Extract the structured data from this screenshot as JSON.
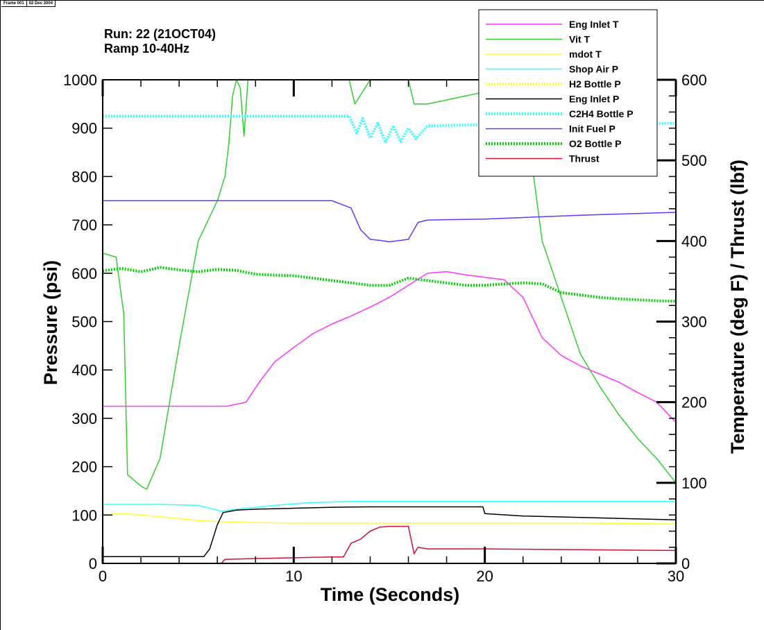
{
  "frame": {
    "frame_label": "Frame 001",
    "date_label": "02 Dec 2004"
  },
  "run_info": {
    "line1": "Run: 22 (21OCT04)",
    "line2": "Ramp 10-40Hz"
  },
  "chart_data": {
    "type": "line",
    "xlabel": "Time (Seconds)",
    "ylabel": "Pressure (psi)",
    "y2label": "Temperature (deg F) / Thrust (lbf)",
    "xlim": [
      0,
      30
    ],
    "ylim": [
      0,
      1000
    ],
    "y2lim": [
      0,
      600
    ],
    "x_ticks": [
      "0",
      "10",
      "20",
      "30"
    ],
    "y_ticks": [
      "0",
      "100",
      "200",
      "300",
      "400",
      "500",
      "600",
      "700",
      "800",
      "900",
      "1000"
    ],
    "y2_ticks": [
      "0",
      "100",
      "200",
      "300",
      "400",
      "500",
      "600"
    ],
    "grid": false,
    "legend_position": "top-right",
    "series": [
      {
        "name": "Eng Inlet T",
        "axis": "right",
        "color": "#ff33ff",
        "style": "line",
        "x": [
          0,
          2,
          4,
          6.5,
          7.5,
          8.2,
          9,
          10,
          11,
          12,
          13,
          14,
          15,
          16,
          17,
          18,
          19,
          20,
          21,
          22,
          23,
          24,
          25,
          26,
          27,
          28,
          29,
          30
        ],
        "y": [
          195,
          195,
          195,
          195,
          200,
          225,
          250,
          268,
          285,
          297,
          307,
          318,
          330,
          345,
          360,
          362,
          358,
          355,
          352,
          330,
          280,
          258,
          245,
          235,
          225,
          212,
          200,
          175
        ]
      },
      {
        "name": "Vit T",
        "axis": "right",
        "color": "#33cc33",
        "style": "line",
        "x": [
          0,
          0.7,
          1.1,
          1.3,
          2,
          2.3,
          3,
          4,
          5,
          6,
          6.4,
          6.6,
          6.8,
          7,
          7.2,
          7.4,
          7.6,
          8,
          12,
          12.9,
          13.2,
          14,
          15,
          16,
          16.3,
          17,
          20,
          21,
          22,
          22.5,
          23,
          24,
          25,
          26,
          27,
          28,
          29,
          30
        ],
        "y": [
          385,
          380,
          310,
          110,
          96,
          92,
          130,
          270,
          400,
          450,
          480,
          520,
          580,
          600,
          590,
          530,
          600,
          600,
          600,
          600,
          570,
          600,
          600,
          600,
          570,
          570,
          585,
          580,
          545,
          490,
          400,
          330,
          260,
          220,
          185,
          155,
          130,
          100
        ]
      },
      {
        "name": "mdot T",
        "axis": "right",
        "color": "#ffff33",
        "style": "line",
        "x": [
          0,
          1,
          3,
          5,
          7,
          10,
          15,
          20,
          25,
          30
        ],
        "y": [
          60,
          62,
          58,
          53,
          51,
          50,
          50,
          50,
          50,
          49
        ]
      },
      {
        "name": "Shop Air P",
        "axis": "left",
        "color": "#33ffff",
        "style": "line",
        "x": [
          0,
          3,
          5,
          6.2,
          7,
          9,
          11,
          13,
          15,
          20,
          25,
          30
        ],
        "y": [
          122,
          122,
          120,
          108,
          112,
          120,
          126,
          128,
          128,
          128,
          128,
          128
        ]
      },
      {
        "name": "H2 Bottle P",
        "axis": "left",
        "color": "#ffff33",
        "style": "dotted",
        "x": [],
        "y": []
      },
      {
        "name": "Eng Inlet P",
        "axis": "left",
        "color": "#000000",
        "style": "line",
        "x": [
          0,
          5.3,
          5.6,
          6,
          6.3,
          7,
          8,
          10,
          12,
          14,
          16,
          18,
          19.9,
          20,
          22,
          25,
          30
        ],
        "y": [
          14,
          14,
          30,
          80,
          105,
          110,
          112,
          114,
          116,
          117,
          117,
          117,
          117,
          103,
          98,
          95,
          90
        ]
      },
      {
        "name": "C2H4 Bottle P",
        "axis": "left",
        "color": "#33ffff",
        "style": "dotted",
        "x": [
          0,
          5,
          10,
          12.9,
          13.3,
          13.6,
          14,
          14.4,
          14.8,
          15.2,
          15.6,
          16,
          16.4,
          17,
          20,
          25,
          30
        ],
        "y": [
          925,
          925,
          925,
          925,
          890,
          920,
          880,
          910,
          870,
          905,
          872,
          900,
          878,
          905,
          907,
          908,
          910
        ]
      },
      {
        "name": "Init Fuel P",
        "axis": "left",
        "color": "#6633ff",
        "style": "line",
        "x": [
          0,
          5,
          10,
          12,
          13,
          13.5,
          14,
          14.5,
          15,
          16,
          16.5,
          17,
          20,
          25,
          30
        ],
        "y": [
          750,
          750,
          750,
          750,
          735,
          690,
          670,
          668,
          665,
          670,
          705,
          710,
          712,
          720,
          726
        ]
      },
      {
        "name": "O2 Bottle P",
        "axis": "left",
        "color": "#00cc00",
        "style": "dotted",
        "x": [
          0,
          1,
          2,
          3,
          4,
          5,
          6,
          7,
          8,
          9,
          10,
          11,
          12,
          13,
          14,
          15,
          16,
          17,
          18,
          19,
          20,
          21,
          22,
          23,
          24,
          25,
          26,
          27,
          28,
          29,
          30
        ],
        "y": [
          605,
          610,
          603,
          612,
          607,
          603,
          608,
          606,
          598,
          596,
          595,
          590,
          585,
          580,
          575,
          575,
          590,
          585,
          580,
          575,
          575,
          578,
          580,
          578,
          560,
          555,
          550,
          547,
          545,
          543,
          542
        ]
      },
      {
        "name": "Thrust",
        "axis": "right",
        "color": "#cc1133",
        "style": "line",
        "x": [
          0,
          6.2,
          6.4,
          8,
          10,
          12,
          12.6,
          13,
          13.5,
          14,
          14.5,
          15,
          16,
          16.3,
          16.5,
          17,
          20,
          25,
          30
        ],
        "y": [
          0,
          0,
          5,
          6,
          7,
          8,
          8,
          25,
          30,
          40,
          45,
          46,
          46,
          12,
          20,
          18,
          18,
          17,
          16
        ]
      }
    ]
  }
}
